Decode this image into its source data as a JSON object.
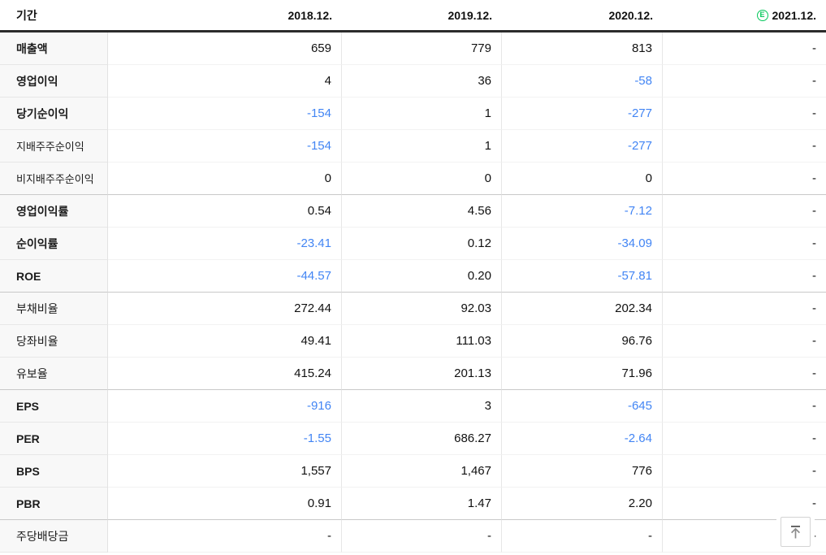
{
  "colors": {
    "negative_value": "#4285f4",
    "estimate_badge": "#03c75a"
  },
  "header": {
    "period_label": "기간",
    "columns": [
      "2018.12.",
      "2019.12.",
      "2020.12.",
      "2021.12."
    ],
    "estimate_badge": "E"
  },
  "rows": [
    {
      "label": "매출액",
      "style": "bold",
      "group_end": false,
      "values": [
        "659",
        "779",
        "813",
        "-"
      ]
    },
    {
      "label": "영업이익",
      "style": "bold",
      "group_end": false,
      "values": [
        "4",
        "36",
        "-58",
        "-"
      ]
    },
    {
      "label": "당기순이익",
      "style": "bold",
      "group_end": false,
      "values": [
        "-154",
        "1",
        "-277",
        "-"
      ]
    },
    {
      "label": "지배주주순이익",
      "style": "sub",
      "group_end": false,
      "values": [
        "-154",
        "1",
        "-277",
        "-"
      ]
    },
    {
      "label": "비지배주주순이익",
      "style": "sub",
      "group_end": true,
      "values": [
        "0",
        "0",
        "0",
        "-"
      ]
    },
    {
      "label": "영업이익률",
      "style": "bold",
      "group_end": false,
      "values": [
        "0.54",
        "4.56",
        "-7.12",
        "-"
      ]
    },
    {
      "label": "순이익률",
      "style": "bold",
      "group_end": false,
      "values": [
        "-23.41",
        "0.12",
        "-34.09",
        "-"
      ]
    },
    {
      "label": "ROE",
      "style": "bold",
      "group_end": true,
      "values": [
        "-44.57",
        "0.20",
        "-57.81",
        "-"
      ]
    },
    {
      "label": "부채비율",
      "style": "normal",
      "group_end": false,
      "values": [
        "272.44",
        "92.03",
        "202.34",
        "-"
      ]
    },
    {
      "label": "당좌비율",
      "style": "normal",
      "group_end": false,
      "values": [
        "49.41",
        "111.03",
        "96.76",
        "-"
      ]
    },
    {
      "label": "유보율",
      "style": "normal",
      "group_end": true,
      "values": [
        "415.24",
        "201.13",
        "71.96",
        "-"
      ]
    },
    {
      "label": "EPS",
      "style": "bold",
      "group_end": false,
      "values": [
        "-916",
        "3",
        "-645",
        "-"
      ]
    },
    {
      "label": "PER",
      "style": "bold",
      "group_end": false,
      "values": [
        "-1.55",
        "686.27",
        "-2.64",
        "-"
      ]
    },
    {
      "label": "BPS",
      "style": "bold",
      "group_end": false,
      "values": [
        "1,557",
        "1,467",
        "776",
        "-"
      ]
    },
    {
      "label": "PBR",
      "style": "bold",
      "group_end": true,
      "values": [
        "0.91",
        "1.47",
        "2.20",
        "-"
      ]
    },
    {
      "label": "주당배당금",
      "style": "normal",
      "group_end": false,
      "values": [
        "-",
        "-",
        "-",
        "-"
      ]
    }
  ],
  "scroll_top_button": {
    "icon": "arrow-up-to-top-icon"
  }
}
